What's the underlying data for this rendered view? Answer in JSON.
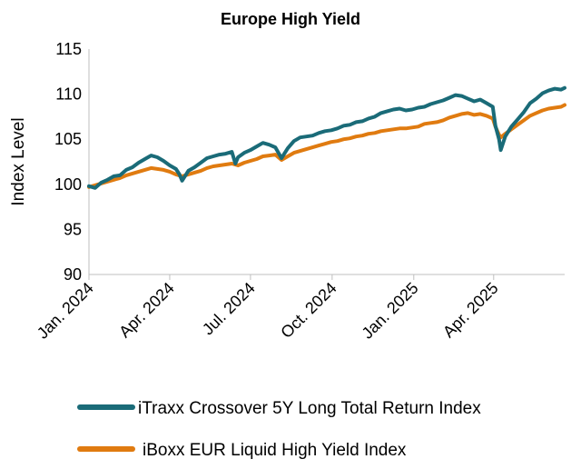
{
  "chart_data": {
    "type": "line",
    "title": "Europe High Yield",
    "ylabel": "Index Level",
    "xlabel": "",
    "ylim": [
      90,
      115
    ],
    "yticks": [
      90,
      95,
      100,
      105,
      110,
      115
    ],
    "xlim": [
      "2024-01-01",
      "2025-06-20"
    ],
    "xticks": [
      {
        "label": "Jan. 2024",
        "date": "2024-01-01"
      },
      {
        "label": "Apr. 2024",
        "date": "2024-04-01"
      },
      {
        "label": "Jul. 2024",
        "date": "2024-07-01"
      },
      {
        "label": "Oct. 2024",
        "date": "2024-10-01"
      },
      {
        "label": "Jan. 2025",
        "date": "2025-01-01"
      },
      {
        "label": "Apr. 2025",
        "date": "2025-04-01"
      }
    ],
    "grid": false,
    "legend_position": "bottom",
    "series": [
      {
        "name": "iTraxx Crossover 5Y Long Total Return Index",
        "color": "#1a6b78",
        "points": [
          [
            "2024-01-01",
            99.8
          ],
          [
            "2024-01-08",
            99.6
          ],
          [
            "2024-01-15",
            100.2
          ],
          [
            "2024-01-22",
            100.5
          ],
          [
            "2024-01-29",
            100.9
          ],
          [
            "2024-02-05",
            101.0
          ],
          [
            "2024-02-12",
            101.6
          ],
          [
            "2024-02-19",
            101.9
          ],
          [
            "2024-02-26",
            102.4
          ],
          [
            "2024-03-04",
            102.8
          ],
          [
            "2024-03-11",
            103.2
          ],
          [
            "2024-03-18",
            103.0
          ],
          [
            "2024-03-25",
            102.6
          ],
          [
            "2024-04-01",
            102.1
          ],
          [
            "2024-04-08",
            101.7
          ],
          [
            "2024-04-12",
            101.1
          ],
          [
            "2024-04-15",
            100.4
          ],
          [
            "2024-04-22",
            101.5
          ],
          [
            "2024-04-29",
            101.9
          ],
          [
            "2024-05-06",
            102.4
          ],
          [
            "2024-05-13",
            102.9
          ],
          [
            "2024-05-20",
            103.1
          ],
          [
            "2024-05-27",
            103.3
          ],
          [
            "2024-06-03",
            103.4
          ],
          [
            "2024-06-10",
            103.6
          ],
          [
            "2024-06-14",
            102.3
          ],
          [
            "2024-06-17",
            103.0
          ],
          [
            "2024-06-24",
            103.5
          ],
          [
            "2024-07-01",
            103.8
          ],
          [
            "2024-07-08",
            104.2
          ],
          [
            "2024-07-15",
            104.6
          ],
          [
            "2024-07-22",
            104.4
          ],
          [
            "2024-07-29",
            104.1
          ],
          [
            "2024-08-05",
            102.9
          ],
          [
            "2024-08-12",
            104.0
          ],
          [
            "2024-08-19",
            104.8
          ],
          [
            "2024-08-26",
            105.2
          ],
          [
            "2024-09-02",
            105.3
          ],
          [
            "2024-09-09",
            105.4
          ],
          [
            "2024-09-16",
            105.7
          ],
          [
            "2024-09-23",
            105.9
          ],
          [
            "2024-09-30",
            106.0
          ],
          [
            "2024-10-07",
            106.2
          ],
          [
            "2024-10-14",
            106.5
          ],
          [
            "2024-10-21",
            106.6
          ],
          [
            "2024-10-28",
            106.9
          ],
          [
            "2024-11-04",
            107.0
          ],
          [
            "2024-11-11",
            107.3
          ],
          [
            "2024-11-18",
            107.5
          ],
          [
            "2024-11-25",
            107.9
          ],
          [
            "2024-12-02",
            108.1
          ],
          [
            "2024-12-09",
            108.3
          ],
          [
            "2024-12-16",
            108.4
          ],
          [
            "2024-12-23",
            108.2
          ],
          [
            "2024-12-30",
            108.3
          ],
          [
            "2025-01-06",
            108.5
          ],
          [
            "2025-01-13",
            108.6
          ],
          [
            "2025-01-20",
            108.9
          ],
          [
            "2025-01-27",
            109.1
          ],
          [
            "2025-02-03",
            109.3
          ],
          [
            "2025-02-10",
            109.6
          ],
          [
            "2025-02-17",
            109.9
          ],
          [
            "2025-02-24",
            109.8
          ],
          [
            "2025-03-03",
            109.5
          ],
          [
            "2025-03-10",
            109.2
          ],
          [
            "2025-03-17",
            109.4
          ],
          [
            "2025-03-24",
            109.0
          ],
          [
            "2025-03-31",
            108.6
          ],
          [
            "2025-04-03",
            106.5
          ],
          [
            "2025-04-07",
            105.0
          ],
          [
            "2025-04-09",
            103.8
          ],
          [
            "2025-04-14",
            105.3
          ],
          [
            "2025-04-21",
            106.4
          ],
          [
            "2025-04-28",
            107.2
          ],
          [
            "2025-05-05",
            108.0
          ],
          [
            "2025-05-12",
            109.0
          ],
          [
            "2025-05-19",
            109.5
          ],
          [
            "2025-05-26",
            110.1
          ],
          [
            "2025-06-02",
            110.4
          ],
          [
            "2025-06-09",
            110.6
          ],
          [
            "2025-06-16",
            110.5
          ],
          [
            "2025-06-20",
            110.7
          ]
        ]
      },
      {
        "name": "iBoxx EUR Liquid High Yield Index",
        "color": "#e07b10",
        "points": [
          [
            "2024-01-01",
            99.7
          ],
          [
            "2024-01-08",
            99.9
          ],
          [
            "2024-01-15",
            100.1
          ],
          [
            "2024-01-22",
            100.3
          ],
          [
            "2024-01-29",
            100.5
          ],
          [
            "2024-02-05",
            100.7
          ],
          [
            "2024-02-12",
            101.0
          ],
          [
            "2024-02-19",
            101.2
          ],
          [
            "2024-02-26",
            101.4
          ],
          [
            "2024-03-04",
            101.6
          ],
          [
            "2024-03-11",
            101.8
          ],
          [
            "2024-03-18",
            101.7
          ],
          [
            "2024-03-25",
            101.6
          ],
          [
            "2024-04-01",
            101.4
          ],
          [
            "2024-04-08",
            101.1
          ],
          [
            "2024-04-15",
            100.9
          ],
          [
            "2024-04-22",
            101.1
          ],
          [
            "2024-04-29",
            101.3
          ],
          [
            "2024-05-06",
            101.5
          ],
          [
            "2024-05-13",
            101.8
          ],
          [
            "2024-05-20",
            102.0
          ],
          [
            "2024-05-27",
            102.1
          ],
          [
            "2024-06-03",
            102.2
          ],
          [
            "2024-06-10",
            102.3
          ],
          [
            "2024-06-17",
            102.1
          ],
          [
            "2024-06-24",
            102.4
          ],
          [
            "2024-07-01",
            102.6
          ],
          [
            "2024-07-08",
            102.8
          ],
          [
            "2024-07-15",
            103.1
          ],
          [
            "2024-07-22",
            103.2
          ],
          [
            "2024-07-29",
            103.3
          ],
          [
            "2024-08-05",
            102.7
          ],
          [
            "2024-08-12",
            103.1
          ],
          [
            "2024-08-19",
            103.5
          ],
          [
            "2024-08-26",
            103.7
          ],
          [
            "2024-09-02",
            103.9
          ],
          [
            "2024-09-09",
            104.1
          ],
          [
            "2024-09-16",
            104.3
          ],
          [
            "2024-09-23",
            104.5
          ],
          [
            "2024-09-30",
            104.7
          ],
          [
            "2024-10-07",
            104.8
          ],
          [
            "2024-10-14",
            105.0
          ],
          [
            "2024-10-21",
            105.1
          ],
          [
            "2024-10-28",
            105.3
          ],
          [
            "2024-11-04",
            105.4
          ],
          [
            "2024-11-11",
            105.6
          ],
          [
            "2024-11-18",
            105.7
          ],
          [
            "2024-11-25",
            105.9
          ],
          [
            "2024-12-02",
            106.0
          ],
          [
            "2024-12-09",
            106.1
          ],
          [
            "2024-12-16",
            106.2
          ],
          [
            "2024-12-23",
            106.2
          ],
          [
            "2024-12-30",
            106.3
          ],
          [
            "2025-01-06",
            106.4
          ],
          [
            "2025-01-13",
            106.7
          ],
          [
            "2025-01-20",
            106.8
          ],
          [
            "2025-01-27",
            106.9
          ],
          [
            "2025-02-03",
            107.1
          ],
          [
            "2025-02-10",
            107.4
          ],
          [
            "2025-02-17",
            107.6
          ],
          [
            "2025-02-24",
            107.8
          ],
          [
            "2025-03-03",
            107.9
          ],
          [
            "2025-03-10",
            107.7
          ],
          [
            "2025-03-17",
            107.8
          ],
          [
            "2025-03-24",
            107.6
          ],
          [
            "2025-03-31",
            107.3
          ],
          [
            "2025-04-03",
            106.4
          ],
          [
            "2025-04-07",
            105.5
          ],
          [
            "2025-04-09",
            105.2
          ],
          [
            "2025-04-14",
            105.6
          ],
          [
            "2025-04-21",
            106.1
          ],
          [
            "2025-04-28",
            106.6
          ],
          [
            "2025-05-05",
            107.1
          ],
          [
            "2025-05-12",
            107.6
          ],
          [
            "2025-05-19",
            107.9
          ],
          [
            "2025-05-26",
            108.2
          ],
          [
            "2025-06-02",
            108.4
          ],
          [
            "2025-06-09",
            108.5
          ],
          [
            "2025-06-16",
            108.6
          ],
          [
            "2025-06-20",
            108.8
          ]
        ]
      }
    ]
  }
}
